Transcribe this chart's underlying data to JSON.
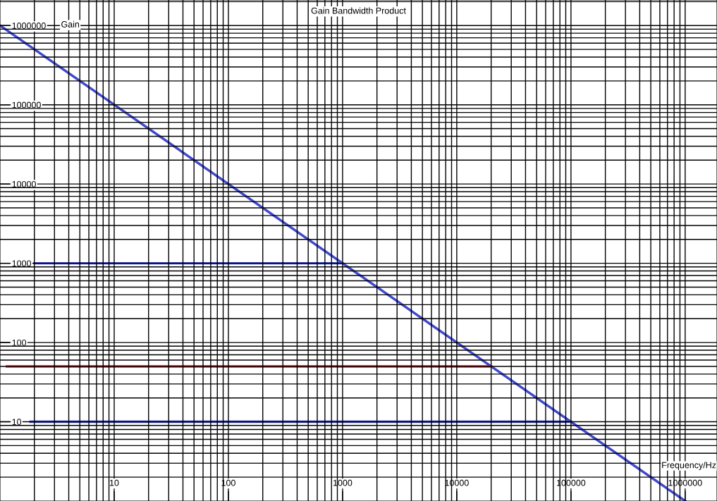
{
  "chart_data": {
    "type": "line",
    "title": "Gain Bandwidth Product",
    "xlabel": "Frequency/Hz",
    "ylabel": "Gain",
    "log": "xy",
    "grid": true,
    "marker": "none",
    "line_style": "solid",
    "xlim": [
      1,
      1900000
    ],
    "ylim": [
      1,
      2100000
    ],
    "xticks": [
      10,
      100,
      1000,
      10000,
      100000,
      1000000
    ],
    "yticks": [
      10,
      100,
      1000,
      10000,
      100000,
      1000000
    ],
    "series": [
      {
        "color": "#3f48cc",
        "x": [
          1,
          1000000
        ],
        "values": [
          1000000,
          1
        ]
      },
      {
        "color": "#3f48cc",
        "x": [
          2,
          1000
        ],
        "values": [
          1000,
          1000
        ]
      },
      {
        "color": "#ee1c24",
        "x": [
          1.15,
          20000
        ],
        "values": [
          50,
          50
        ]
      },
      {
        "color": "#3f48cc",
        "x": [
          1.85,
          100000
        ],
        "values": [
          10,
          10
        ]
      }
    ]
  }
}
